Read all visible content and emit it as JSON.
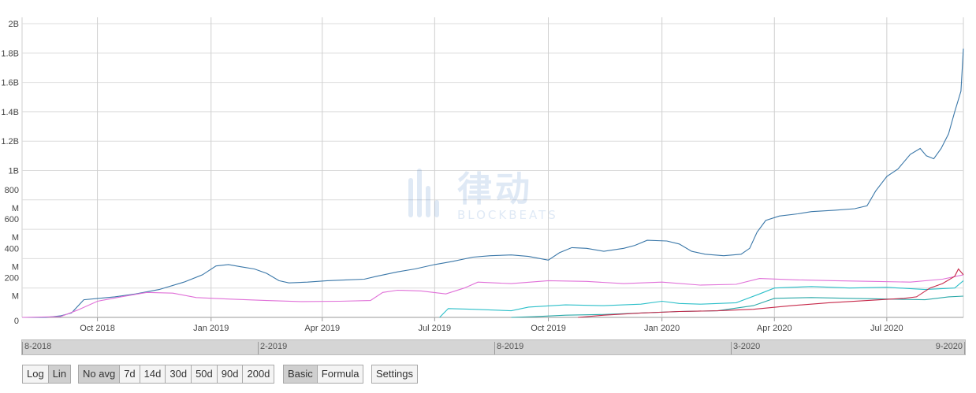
{
  "chart_data": {
    "type": "line",
    "title": "",
    "xlabel": "",
    "ylabel": "",
    "y_scale": "linear",
    "ylim": [
      0,
      2000000000
    ],
    "xlim": [
      "2018-08-01",
      "2020-09-01"
    ],
    "grid": true,
    "y_ticks": [
      {
        "value": 0,
        "label": "0"
      },
      {
        "value": 200000000,
        "label": "200 M"
      },
      {
        "value": 400000000,
        "label": "400 M"
      },
      {
        "value": 600000000,
        "label": "600 M"
      },
      {
        "value": 800000000,
        "label": "800 M"
      },
      {
        "value": 1000000000,
        "label": "1B"
      },
      {
        "value": 1200000000,
        "label": "1.2B"
      },
      {
        "value": 1400000000,
        "label": "1.4B"
      },
      {
        "value": 1600000000,
        "label": "1.6B"
      },
      {
        "value": 1800000000,
        "label": "1.8B"
      },
      {
        "value": 2000000000,
        "label": "2B"
      }
    ],
    "x_ticks": [
      {
        "date": "2018-10-01",
        "label": "Oct 2018"
      },
      {
        "date": "2019-01-01",
        "label": "Jan 2019"
      },
      {
        "date": "2019-04-01",
        "label": "Apr 2019"
      },
      {
        "date": "2019-07-01",
        "label": "Jul 2019"
      },
      {
        "date": "2019-10-01",
        "label": "Oct 2019"
      },
      {
        "date": "2020-01-01",
        "label": "Jan 2020"
      },
      {
        "date": "2020-04-01",
        "label": "Apr 2020"
      },
      {
        "date": "2020-07-01",
        "label": "Jul 2020"
      }
    ],
    "series": [
      {
        "color": "#3a77a8",
        "points": [
          [
            "2018-08-01",
            0
          ],
          [
            "2018-08-20",
            0
          ],
          [
            "2018-09-01",
            10000000
          ],
          [
            "2018-09-10",
            30000000
          ],
          [
            "2018-09-20",
            120000000
          ],
          [
            "2018-10-15",
            140000000
          ],
          [
            "2018-11-01",
            160000000
          ],
          [
            "2018-11-20",
            190000000
          ],
          [
            "2018-12-10",
            240000000
          ],
          [
            "2018-12-25",
            290000000
          ],
          [
            "2019-01-05",
            350000000
          ],
          [
            "2019-01-15",
            360000000
          ],
          [
            "2019-01-25",
            345000000
          ],
          [
            "2019-02-05",
            330000000
          ],
          [
            "2019-02-15",
            300000000
          ],
          [
            "2019-02-25",
            250000000
          ],
          [
            "2019-03-05",
            235000000
          ],
          [
            "2019-03-20",
            240000000
          ],
          [
            "2019-04-05",
            250000000
          ],
          [
            "2019-04-20",
            255000000
          ],
          [
            "2019-05-05",
            260000000
          ],
          [
            "2019-05-15",
            280000000
          ],
          [
            "2019-06-01",
            310000000
          ],
          [
            "2019-06-15",
            330000000
          ],
          [
            "2019-07-01",
            360000000
          ],
          [
            "2019-07-15",
            380000000
          ],
          [
            "2019-08-01",
            410000000
          ],
          [
            "2019-08-15",
            420000000
          ],
          [
            "2019-09-01",
            425000000
          ],
          [
            "2019-09-15",
            415000000
          ],
          [
            "2019-10-01",
            390000000
          ],
          [
            "2019-10-10",
            440000000
          ],
          [
            "2019-10-20",
            475000000
          ],
          [
            "2019-11-01",
            470000000
          ],
          [
            "2019-11-15",
            450000000
          ],
          [
            "2019-12-01",
            470000000
          ],
          [
            "2019-12-10",
            490000000
          ],
          [
            "2019-12-20",
            525000000
          ],
          [
            "2020-01-05",
            520000000
          ],
          [
            "2020-01-15",
            500000000
          ],
          [
            "2020-01-25",
            450000000
          ],
          [
            "2020-02-05",
            430000000
          ],
          [
            "2020-02-20",
            420000000
          ],
          [
            "2020-03-05",
            430000000
          ],
          [
            "2020-03-12",
            470000000
          ],
          [
            "2020-03-18",
            580000000
          ],
          [
            "2020-03-25",
            660000000
          ],
          [
            "2020-04-05",
            690000000
          ],
          [
            "2020-04-20",
            705000000
          ],
          [
            "2020-05-01",
            720000000
          ],
          [
            "2020-05-20",
            730000000
          ],
          [
            "2020-06-05",
            740000000
          ],
          [
            "2020-06-15",
            760000000
          ],
          [
            "2020-06-22",
            860000000
          ],
          [
            "2020-07-01",
            960000000
          ],
          [
            "2020-07-10",
            1010000000
          ],
          [
            "2020-07-20",
            1110000000
          ],
          [
            "2020-07-28",
            1150000000
          ],
          [
            "2020-08-02",
            1100000000
          ],
          [
            "2020-08-08",
            1080000000
          ],
          [
            "2020-08-14",
            1150000000
          ],
          [
            "2020-08-20",
            1250000000
          ],
          [
            "2020-08-25",
            1400000000
          ],
          [
            "2020-08-30",
            1540000000
          ],
          [
            "2020-09-01",
            1830000000
          ]
        ]
      },
      {
        "color": "#e070d8",
        "points": [
          [
            "2018-08-01",
            0
          ],
          [
            "2018-09-01",
            5000000
          ],
          [
            "2018-09-15",
            50000000
          ],
          [
            "2018-10-01",
            110000000
          ],
          [
            "2018-10-20",
            140000000
          ],
          [
            "2018-11-10",
            170000000
          ],
          [
            "2018-12-01",
            165000000
          ],
          [
            "2018-12-20",
            135000000
          ],
          [
            "2019-01-15",
            125000000
          ],
          [
            "2019-02-15",
            115000000
          ],
          [
            "2019-03-15",
            108000000
          ],
          [
            "2019-04-15",
            110000000
          ],
          [
            "2019-05-10",
            115000000
          ],
          [
            "2019-05-20",
            170000000
          ],
          [
            "2019-06-01",
            185000000
          ],
          [
            "2019-06-20",
            180000000
          ],
          [
            "2019-07-10",
            160000000
          ],
          [
            "2019-07-25",
            200000000
          ],
          [
            "2019-08-05",
            240000000
          ],
          [
            "2019-09-01",
            230000000
          ],
          [
            "2019-10-01",
            250000000
          ],
          [
            "2019-11-01",
            245000000
          ],
          [
            "2019-12-01",
            230000000
          ],
          [
            "2020-01-01",
            240000000
          ],
          [
            "2020-02-01",
            220000000
          ],
          [
            "2020-03-01",
            225000000
          ],
          [
            "2020-03-20",
            265000000
          ],
          [
            "2020-04-20",
            255000000
          ],
          [
            "2020-05-20",
            250000000
          ],
          [
            "2020-06-20",
            245000000
          ],
          [
            "2020-07-20",
            240000000
          ],
          [
            "2020-08-15",
            260000000
          ],
          [
            "2020-09-01",
            290000000
          ]
        ]
      },
      {
        "color": "#2bbfc9",
        "points": [
          [
            "2019-07-05",
            0
          ],
          [
            "2019-07-12",
            60000000
          ],
          [
            "2019-08-01",
            55000000
          ],
          [
            "2019-09-01",
            45000000
          ],
          [
            "2019-09-15",
            70000000
          ],
          [
            "2019-10-15",
            85000000
          ],
          [
            "2019-11-15",
            80000000
          ],
          [
            "2019-12-15",
            90000000
          ],
          [
            "2020-01-01",
            110000000
          ],
          [
            "2020-01-15",
            95000000
          ],
          [
            "2020-02-01",
            90000000
          ],
          [
            "2020-03-01",
            100000000
          ],
          [
            "2020-03-20",
            160000000
          ],
          [
            "2020-04-01",
            200000000
          ],
          [
            "2020-05-01",
            210000000
          ],
          [
            "2020-06-01",
            200000000
          ],
          [
            "2020-07-01",
            205000000
          ],
          [
            "2020-08-01",
            190000000
          ],
          [
            "2020-08-25",
            200000000
          ],
          [
            "2020-09-01",
            250000000
          ]
        ]
      },
      {
        "color": "#2aa8a8",
        "points": [
          [
            "2019-09-01",
            0
          ],
          [
            "2019-09-20",
            5000000
          ],
          [
            "2019-10-15",
            15000000
          ],
          [
            "2019-11-15",
            20000000
          ],
          [
            "2019-12-15",
            30000000
          ],
          [
            "2020-01-15",
            40000000
          ],
          [
            "2020-02-15",
            45000000
          ],
          [
            "2020-03-15",
            80000000
          ],
          [
            "2020-04-01",
            130000000
          ],
          [
            "2020-05-01",
            135000000
          ],
          [
            "2020-06-01",
            130000000
          ],
          [
            "2020-07-01",
            125000000
          ],
          [
            "2020-08-01",
            120000000
          ],
          [
            "2020-08-20",
            140000000
          ],
          [
            "2020-09-01",
            145000000
          ]
        ]
      },
      {
        "color": "#c7294a",
        "points": [
          [
            "2019-10-25",
            0
          ],
          [
            "2019-11-15",
            15000000
          ],
          [
            "2019-12-15",
            30000000
          ],
          [
            "2020-01-15",
            40000000
          ],
          [
            "2020-02-15",
            45000000
          ],
          [
            "2020-03-15",
            55000000
          ],
          [
            "2020-04-15",
            80000000
          ],
          [
            "2020-05-15",
            100000000
          ],
          [
            "2020-06-15",
            115000000
          ],
          [
            "2020-07-15",
            130000000
          ],
          [
            "2020-07-25",
            140000000
          ],
          [
            "2020-08-05",
            200000000
          ],
          [
            "2020-08-15",
            230000000
          ],
          [
            "2020-08-25",
            280000000
          ],
          [
            "2020-08-28",
            330000000
          ],
          [
            "2020-09-01",
            290000000
          ]
        ]
      }
    ]
  },
  "navigator": {
    "labels": [
      "8-2018",
      "2-2019",
      "8-2019",
      "3-2020",
      "9-2020"
    ]
  },
  "controls": {
    "scale": [
      "Log",
      "Lin"
    ],
    "averages": [
      "No avg",
      "7d",
      "14d",
      "30d",
      "50d",
      "90d",
      "200d"
    ],
    "mode": [
      "Basic",
      "Formula"
    ],
    "settings": "Settings"
  },
  "watermark": {
    "cn": "律动",
    "en": "BLOCKBEATS"
  }
}
